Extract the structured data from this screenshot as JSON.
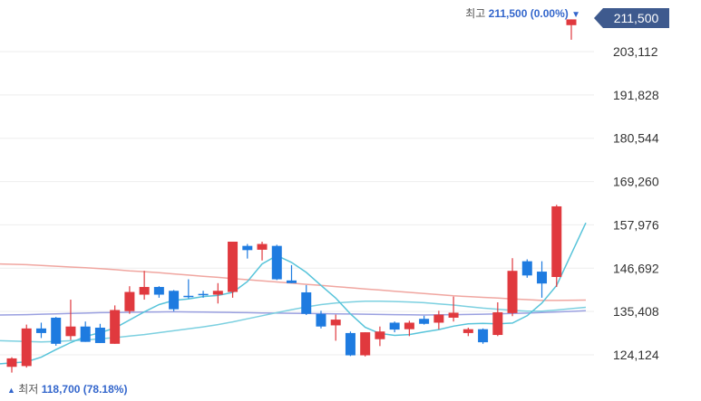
{
  "chart_data": {
    "type": "candlestick",
    "y_ticks": [
      "203,112",
      "191,828",
      "180,544",
      "169,260",
      "157,976",
      "146,692",
      "135,408",
      "124,124"
    ],
    "ylim": [
      118000,
      215000
    ],
    "grid": true,
    "candles": [
      {
        "o": 121000,
        "h": 123500,
        "l": 119500,
        "c": 123200
      },
      {
        "o": 121200,
        "h": 132000,
        "l": 120800,
        "c": 131000
      },
      {
        "o": 131000,
        "h": 132500,
        "l": 128500,
        "c": 129800
      },
      {
        "o": 133800,
        "h": 134000,
        "l": 126500,
        "c": 127000
      },
      {
        "o": 129000,
        "h": 138500,
        "l": 128000,
        "c": 131500
      },
      {
        "o": 131500,
        "h": 132800,
        "l": 127500,
        "c": 127500
      },
      {
        "o": 131200,
        "h": 132200,
        "l": 127200,
        "c": 127200
      },
      {
        "o": 127000,
        "h": 137000,
        "l": 127000,
        "c": 135800
      },
      {
        "o": 135500,
        "h": 142000,
        "l": 134800,
        "c": 140500
      },
      {
        "o": 139800,
        "h": 146000,
        "l": 138500,
        "c": 141800
      },
      {
        "o": 141800,
        "h": 142000,
        "l": 139000,
        "c": 139800
      },
      {
        "o": 140800,
        "h": 141000,
        "l": 135500,
        "c": 136000
      },
      {
        "o": 139500,
        "h": 143800,
        "l": 138800,
        "c": 139200
      },
      {
        "o": 140000,
        "h": 140800,
        "l": 139000,
        "c": 139700
      },
      {
        "o": 139800,
        "h": 142800,
        "l": 137500,
        "c": 140800
      },
      {
        "o": 140500,
        "h": 153600,
        "l": 139000,
        "c": 153600
      },
      {
        "o": 152500,
        "h": 153000,
        "l": 149200,
        "c": 151400
      },
      {
        "o": 151500,
        "h": 153600,
        "l": 148700,
        "c": 153000
      },
      {
        "o": 152500,
        "h": 152800,
        "l": 143600,
        "c": 143800
      },
      {
        "o": 143500,
        "h": 147500,
        "l": 142800,
        "c": 142800
      },
      {
        "o": 140400,
        "h": 142300,
        "l": 134500,
        "c": 134800
      },
      {
        "o": 134800,
        "h": 135600,
        "l": 131000,
        "c": 131500
      },
      {
        "o": 131800,
        "h": 134600,
        "l": 127800,
        "c": 133300
      },
      {
        "o": 129800,
        "h": 130200,
        "l": 123800,
        "c": 124000
      },
      {
        "o": 124000,
        "h": 130000,
        "l": 123700,
        "c": 130000
      },
      {
        "o": 128200,
        "h": 131500,
        "l": 126400,
        "c": 130200
      },
      {
        "o": 132500,
        "h": 132800,
        "l": 130000,
        "c": 130700
      },
      {
        "o": 130800,
        "h": 133000,
        "l": 129000,
        "c": 132500
      },
      {
        "o": 133500,
        "h": 134300,
        "l": 132000,
        "c": 132200
      },
      {
        "o": 132500,
        "h": 135600,
        "l": 130800,
        "c": 134600
      },
      {
        "o": 133800,
        "h": 139300,
        "l": 132800,
        "c": 135100
      },
      {
        "o": 129800,
        "h": 131200,
        "l": 129000,
        "c": 130800
      },
      {
        "o": 130800,
        "h": 131000,
        "l": 127000,
        "c": 127400
      },
      {
        "o": 129300,
        "h": 137800,
        "l": 129000,
        "c": 135200
      },
      {
        "o": 135000,
        "h": 149300,
        "l": 134200,
        "c": 146000
      },
      {
        "o": 148500,
        "h": 149000,
        "l": 144200,
        "c": 144800
      },
      {
        "o": 145800,
        "h": 148500,
        "l": 139000,
        "c": 142700
      },
      {
        "o": 144400,
        "h": 163200,
        "l": 141800,
        "c": 162800
      },
      {
        "o": 210000,
        "h": 211500,
        "l": 206200,
        "c": 211500
      }
    ],
    "ma_lines": [
      {
        "color": "#f0a6a0",
        "values": [
          147800,
          147600,
          147400,
          147200,
          147000,
          146800,
          146600,
          146300,
          146000,
          145800,
          145500,
          145200,
          144900,
          144600,
          144300,
          144000,
          143700,
          143400,
          143100,
          142800,
          142500,
          142200,
          141900,
          141600,
          141300,
          141000,
          140700,
          140400,
          140100,
          139800,
          139500,
          139300,
          139100,
          138900,
          138700,
          138500,
          138300,
          138300,
          138400
        ]
      },
      {
        "color": "#9aa0e0",
        "values": [
          134500,
          134600,
          134700,
          134800,
          134900,
          135000,
          135100,
          135150,
          135200,
          135250,
          135300,
          135350,
          135300,
          135250,
          135200,
          135150,
          135100,
          135050,
          135000,
          134950,
          134900,
          134850,
          134800,
          134750,
          134700,
          134650,
          134600,
          134550,
          134500,
          134550,
          134600,
          134650,
          134700,
          134800,
          134900,
          135000,
          135150,
          135300,
          135600
        ]
      },
      {
        "color": "#7cd0e0",
        "values": [
          127800,
          127600,
          127500,
          127600,
          127800,
          128000,
          128300,
          128600,
          129000,
          129400,
          129900,
          130400,
          130900,
          131400,
          132000,
          132700,
          133500,
          134300,
          135100,
          135900,
          136600,
          137200,
          137600,
          137900,
          138100,
          138100,
          138000,
          137900,
          137700,
          137400,
          137100,
          136700,
          136300,
          136000,
          135700,
          135500,
          135500,
          135800,
          136500
        ]
      },
      {
        "color": "#58c4da",
        "values": [
          121800,
          122300,
          123500,
          125500,
          127300,
          128900,
          129900,
          131100,
          133200,
          135300,
          137200,
          138300,
          138700,
          139300,
          139600,
          140400,
          143200,
          147800,
          150000,
          148200,
          145600,
          142200,
          138900,
          134800,
          131300,
          129700,
          129200,
          129400,
          130100,
          130700,
          131600,
          132200,
          132300,
          132200,
          132400,
          134300,
          137600,
          142200,
          158500
        ]
      }
    ],
    "high_label": "최고",
    "high_value": "211,500 (0.00%)",
    "low_label": "최저",
    "low_value": "118,700 (78.18%)",
    "current_price": "211,500",
    "colors": {
      "up": "#e0393e",
      "down": "#1e7be0",
      "grid": "#eeeeee"
    }
  }
}
